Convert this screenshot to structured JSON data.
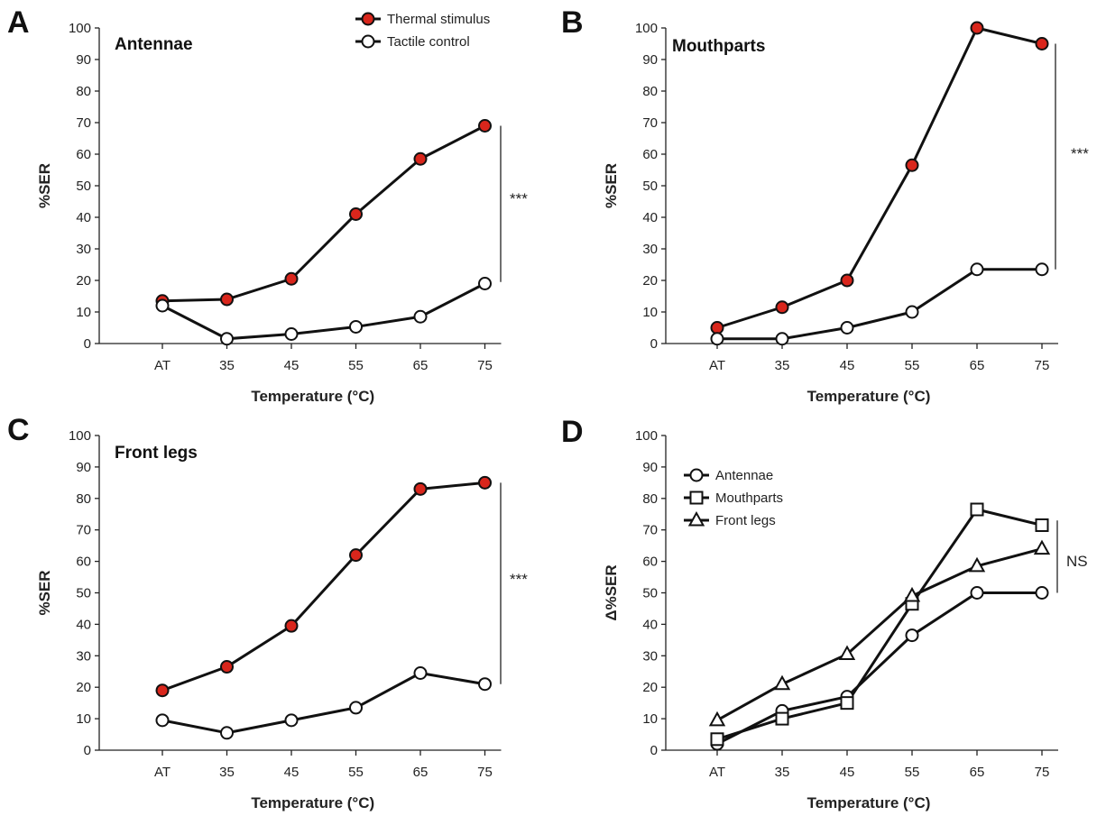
{
  "chart_data": [
    {
      "panel": "A",
      "title": "Antennae",
      "type": "line",
      "xlabel": "Temperature (°C)",
      "ylabel": "%SER",
      "categories": [
        "AT",
        "35",
        "45",
        "55",
        "65",
        "75"
      ],
      "yticks": [
        "0",
        "10",
        "20",
        "30",
        "40",
        "50",
        "60",
        "70",
        "80",
        "90",
        "100"
      ],
      "ylim": [
        0,
        100
      ],
      "grid": false,
      "legend": {
        "placement": "top-right",
        "entries": [
          "Thermal stimulus",
          "Tactile control"
        ]
      },
      "series": [
        {
          "name": "Thermal stimulus",
          "marker": "circle",
          "fill": "#d9261c",
          "values": [
            13.5,
            14,
            20.5,
            41,
            58.5,
            69
          ]
        },
        {
          "name": "Tactile control",
          "marker": "circle",
          "fill": "#ffffff",
          "values": [
            12,
            1.5,
            3,
            5.3,
            8.5,
            19
          ]
        }
      ],
      "annotation": {
        "text": "***",
        "y_range": [
          19.5,
          69
        ]
      }
    },
    {
      "panel": "B",
      "title": "Mouthparts",
      "type": "line",
      "xlabel": "Temperature (°C)",
      "ylabel": "%SER",
      "categories": [
        "AT",
        "35",
        "45",
        "55",
        "65",
        "75"
      ],
      "yticks": [
        "0",
        "10",
        "20",
        "30",
        "40",
        "50",
        "60",
        "70",
        "80",
        "90",
        "100"
      ],
      "ylim": [
        0,
        100
      ],
      "grid": false,
      "series": [
        {
          "name": "Thermal stimulus",
          "marker": "circle",
          "fill": "#d9261c",
          "values": [
            5,
            11.5,
            20,
            56.5,
            100,
            95
          ]
        },
        {
          "name": "Tactile control",
          "marker": "circle",
          "fill": "#ffffff",
          "values": [
            1.5,
            1.5,
            5,
            10,
            23.5,
            23.5
          ]
        }
      ],
      "annotation": {
        "text": "***",
        "y_range": [
          23.5,
          95
        ]
      }
    },
    {
      "panel": "C",
      "title": "Front legs",
      "type": "line",
      "xlabel": "Temperature (°C)",
      "ylabel": "%SER",
      "categories": [
        "AT",
        "35",
        "45",
        "55",
        "65",
        "75"
      ],
      "yticks": [
        "0",
        "10",
        "20",
        "30",
        "40",
        "50",
        "60",
        "70",
        "80",
        "90",
        "100"
      ],
      "ylim": [
        0,
        100
      ],
      "grid": false,
      "series": [
        {
          "name": "Thermal stimulus",
          "marker": "circle",
          "fill": "#d9261c",
          "values": [
            19,
            26.5,
            39.5,
            62,
            83,
            85
          ]
        },
        {
          "name": "Tactile control",
          "marker": "circle",
          "fill": "#ffffff",
          "values": [
            9.5,
            5.5,
            9.5,
            13.5,
            24.5,
            21
          ]
        }
      ],
      "annotation": {
        "text": "***",
        "y_range": [
          21,
          85
        ]
      }
    },
    {
      "panel": "D",
      "title": "",
      "type": "line",
      "xlabel": "Temperature (°C)",
      "ylabel": "Δ%SER",
      "categories": [
        "AT",
        "35",
        "45",
        "55",
        "65",
        "75"
      ],
      "yticks": [
        "0",
        "10",
        "20",
        "30",
        "40",
        "50",
        "60",
        "70",
        "80",
        "90",
        "100"
      ],
      "ylim": [
        0,
        100
      ],
      "grid": false,
      "legend": {
        "placement": "top-left",
        "entries": [
          "Antennae",
          "Mouthparts",
          "Front legs"
        ]
      },
      "series": [
        {
          "name": "Antennae",
          "marker": "circle",
          "fill": "#ffffff",
          "values": [
            2,
            12.5,
            17,
            36.5,
            50,
            50
          ]
        },
        {
          "name": "Mouthparts",
          "marker": "square",
          "fill": "#ffffff",
          "values": [
            3.5,
            10,
            15,
            46.5,
            76.5,
            71.5
          ]
        },
        {
          "name": "Front legs",
          "marker": "triangle",
          "fill": "#ffffff",
          "values": [
            9.5,
            21,
            30.5,
            49,
            58.5,
            64
          ]
        }
      ],
      "annotation": {
        "text": "NS",
        "y_range": [
          50,
          73
        ]
      }
    }
  ]
}
